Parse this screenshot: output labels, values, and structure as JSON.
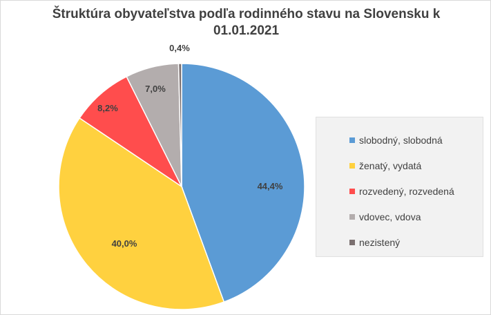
{
  "title_lines": [
    "Štruktúra obyvateľstva podľa rodinného stavu na Slovensku k",
    "01.01.2021"
  ],
  "chart_data": {
    "type": "pie",
    "title": "Štruktúra obyvateľstva podľa rodinného stavu na Slovensku k 01.01.2021",
    "legend_position": "right",
    "slices": [
      {
        "label": "slobodný, slobodná",
        "value": 44.4,
        "display": "44,4%",
        "color": "#5b9bd5"
      },
      {
        "label": "ženatý, vydatá",
        "value": 40.0,
        "display": "40,0%",
        "color": "#ffd13f"
      },
      {
        "label": "rozvedený, rozvedená",
        "value": 8.2,
        "display": "8,2%",
        "color": "#ff4d4d"
      },
      {
        "label": "vdovec, vdova",
        "value": 7.0,
        "display": "7,0%",
        "color": "#b3adad"
      },
      {
        "label": "nezistený",
        "value": 0.4,
        "display": "0,4%",
        "color": "#7b7070"
      }
    ]
  }
}
